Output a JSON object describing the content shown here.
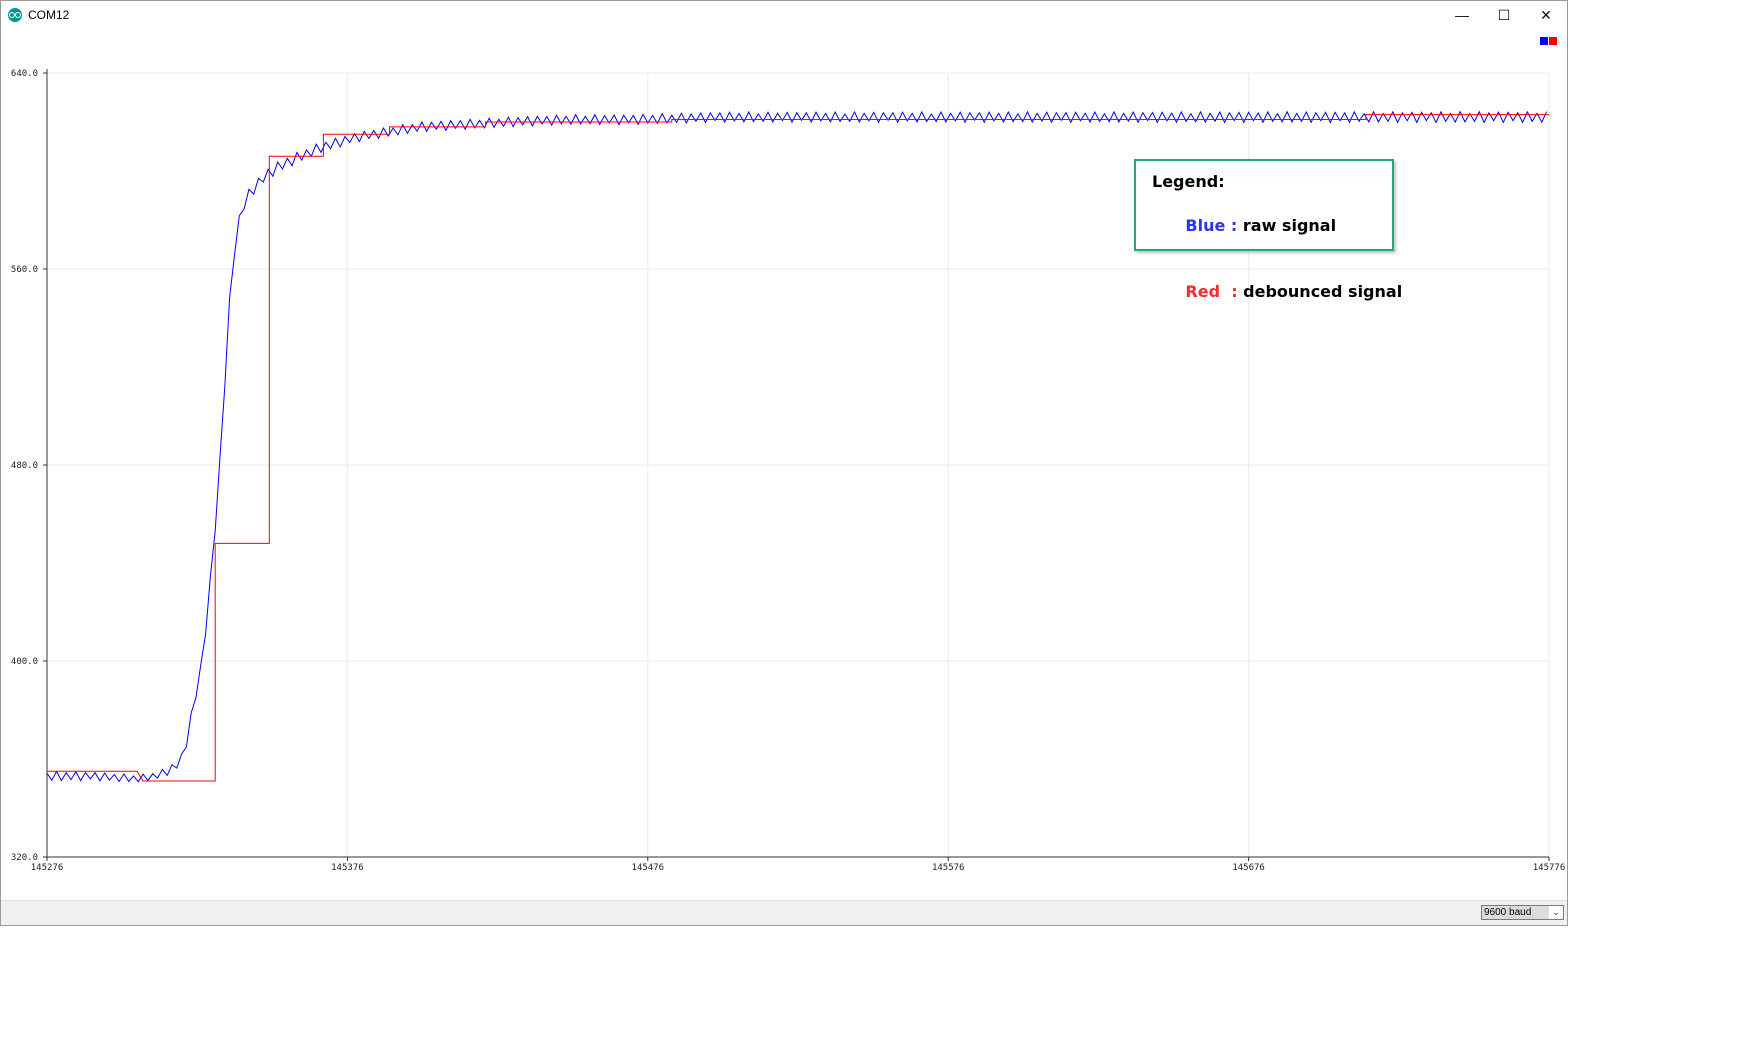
{
  "window": {
    "title": "COM12",
    "app_icon": "arduino-icon",
    "controls": {
      "minimize": "—",
      "maximize": "☐",
      "close": "✕"
    }
  },
  "series_indicator_colors": [
    "#0000ff",
    "#ff0000"
  ],
  "legend": {
    "title": "Legend:",
    "rows": [
      {
        "key": "Blue : ",
        "desc": "raw signal",
        "color": "#2b34ff"
      },
      {
        "key": "Red  : ",
        "desc": "debounced signal",
        "color": "#ff2b2b"
      }
    ]
  },
  "statusbar": {
    "baud": "9600 baud"
  },
  "chart_data": {
    "type": "line",
    "title": "",
    "xlabel": "",
    "ylabel": "",
    "xlim": [
      145276,
      145776
    ],
    "ylim": [
      320,
      640
    ],
    "x_ticks": [
      "145276",
      "145376",
      "145476",
      "145576",
      "145676",
      "145776"
    ],
    "y_ticks": [
      "320.0",
      "400.0",
      "480.0",
      "560.0",
      "640.0"
    ],
    "grid": true,
    "series": [
      {
        "color": "#0000ff",
        "points": [
          [
            145276,
            353
          ],
          [
            145290,
            353
          ],
          [
            145306,
            352
          ],
          [
            145312,
            353
          ],
          [
            145316,
            355
          ],
          [
            145320,
            358
          ],
          [
            145322,
            364
          ],
          [
            145323,
            371
          ],
          [
            145325,
            383
          ],
          [
            145327,
            395
          ],
          [
            145329,
            415
          ],
          [
            145331,
            440
          ],
          [
            145333,
            470
          ],
          [
            145335,
            510
          ],
          [
            145337,
            550
          ],
          [
            145339,
            575
          ],
          [
            145341,
            585
          ],
          [
            145344,
            592
          ],
          [
            145348,
            597
          ],
          [
            145352,
            601
          ],
          [
            145357,
            604
          ],
          [
            145362,
            607
          ],
          [
            145368,
            610
          ],
          [
            145374,
            612
          ],
          [
            145380,
            614
          ],
          [
            145390,
            616
          ],
          [
            145400,
            618
          ],
          [
            145415,
            619
          ],
          [
            145430,
            620
          ],
          [
            145450,
            621
          ],
          [
            145470,
            621
          ],
          [
            145500,
            622
          ],
          [
            145550,
            622
          ],
          [
            145600,
            622
          ],
          [
            145650,
            622
          ],
          [
            145700,
            622
          ],
          [
            145750,
            622
          ],
          [
            145776,
            622
          ]
        ],
        "noise": [
          [
            145276,
            2
          ],
          [
            145310,
            1.5
          ],
          [
            145340,
            2.5
          ],
          [
            145380,
            2
          ],
          [
            145776,
            2.2
          ]
        ]
      },
      {
        "color": "#ff0000",
        "points": [
          [
            145276,
            355
          ],
          [
            145306,
            355
          ],
          [
            145308,
            351
          ],
          [
            145332,
            351
          ],
          [
            145332,
            448
          ],
          [
            145350,
            448
          ],
          [
            145350,
            606
          ],
          [
            145368,
            606
          ],
          [
            145368,
            615
          ],
          [
            145390,
            615
          ],
          [
            145390,
            618
          ],
          [
            145422,
            618
          ],
          [
            145422,
            620
          ],
          [
            145484,
            620
          ],
          [
            145484,
            621
          ],
          [
            145715,
            621
          ],
          [
            145715,
            623
          ],
          [
            145776,
            623
          ]
        ]
      }
    ]
  }
}
